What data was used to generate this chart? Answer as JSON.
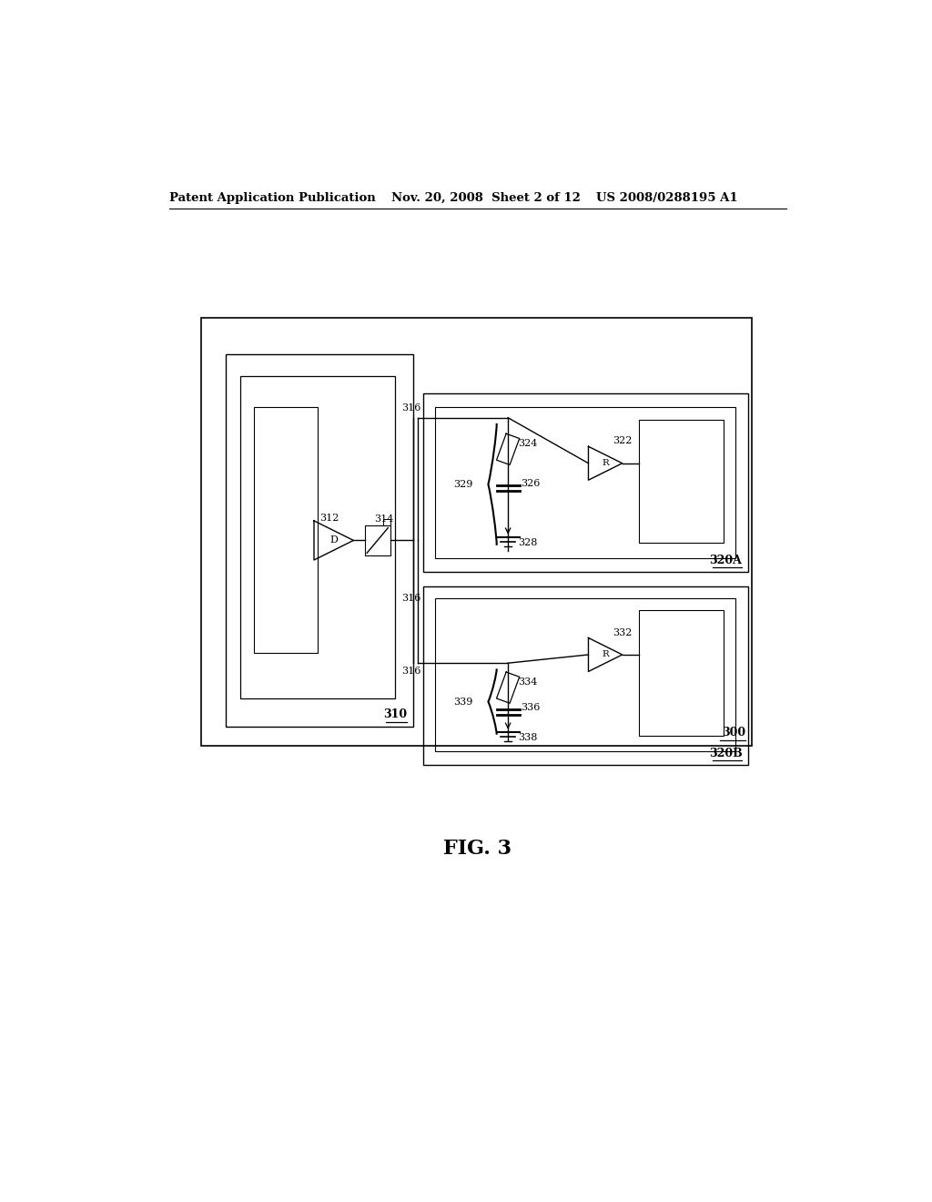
{
  "bg_color": "#ffffff",
  "header_left": "Patent Application Publication",
  "header_mid": "Nov. 20, 2008  Sheet 2 of 12",
  "header_right": "US 2008/0288195 A1",
  "fig_label": "FIG. 3",
  "text_color": "#000000",
  "line_color": "#000000",
  "labels": {
    "300": "300",
    "310": "310",
    "312": "312",
    "314": "314",
    "316a": "316",
    "316b": "316",
    "316c": "316",
    "320A": "320A",
    "320B": "320B",
    "322": "322",
    "324": "324",
    "326": "326",
    "328": "328",
    "329": "329",
    "332": "332",
    "334": "334",
    "336": "336",
    "338": "338",
    "339": "339"
  }
}
